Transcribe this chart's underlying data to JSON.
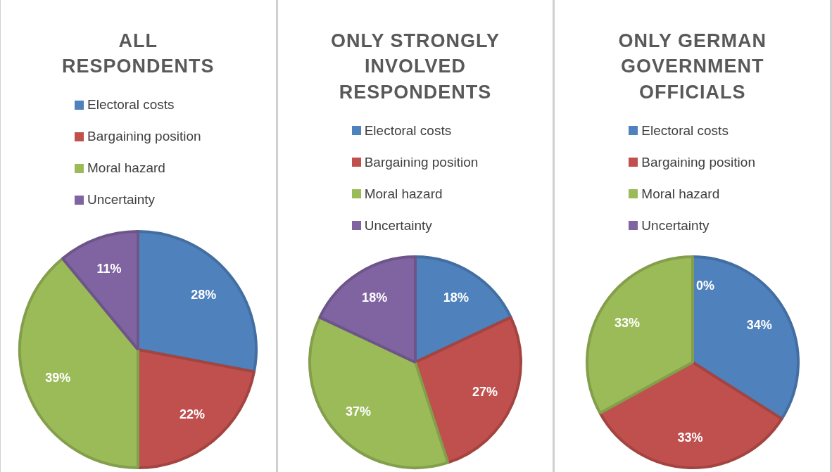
{
  "chart_data": [
    {
      "type": "pie",
      "title": "ALL RESPONDENTS",
      "categories": [
        "Electoral costs",
        "Bargaining position",
        "Moral hazard",
        "Uncertainty"
      ],
      "values": [
        28,
        22,
        39,
        11
      ],
      "value_labels": [
        "28%",
        "22%",
        "39%",
        "11%"
      ],
      "colors": [
        "#4f81bd",
        "#c0504d",
        "#9bbb59",
        "#8064a2"
      ],
      "legend": "top"
    },
    {
      "type": "pie",
      "title": "ONLY STRONGLY INVOLVED RESPONDENTS",
      "categories": [
        "Electoral costs",
        "Bargaining position",
        "Moral hazard",
        "Uncertainty"
      ],
      "values": [
        18,
        27,
        37,
        18
      ],
      "value_labels": [
        "18%",
        "27%",
        "37%",
        "18%"
      ],
      "colors": [
        "#4f81bd",
        "#c0504d",
        "#9bbb59",
        "#8064a2"
      ],
      "legend": "top"
    },
    {
      "type": "pie",
      "title": "ONLY GERMAN GOVERNMENT OFFICIALS",
      "categories": [
        "Electoral costs",
        "Bargaining position",
        "Moral hazard",
        "Uncertainty"
      ],
      "values": [
        34,
        33,
        33,
        0
      ],
      "value_labels": [
        "34%",
        "33%",
        "33%",
        "0%"
      ],
      "colors": [
        "#4f81bd",
        "#c0504d",
        "#9bbb59",
        "#8064a2"
      ],
      "legend": "top"
    }
  ]
}
